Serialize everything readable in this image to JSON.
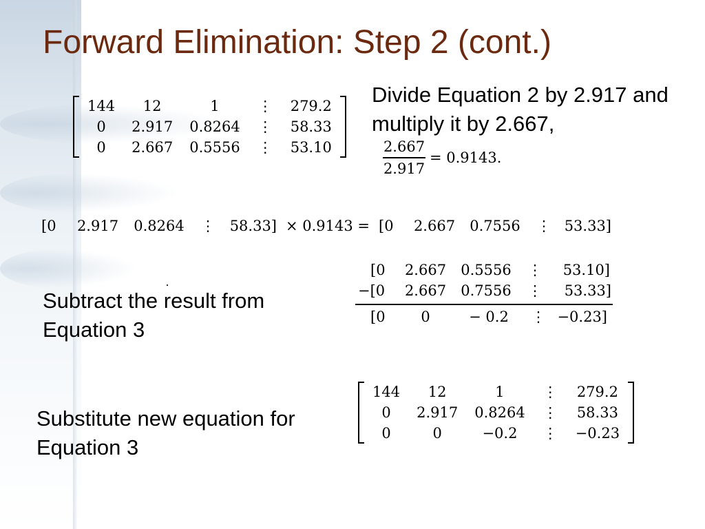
{
  "title": "Forward Elimination: Step 2 (cont.)",
  "matrix_top": [
    [
      "144",
      "12",
      "1",
      "⋮",
      "279.2"
    ],
    [
      "0",
      "2.917",
      "0.8264",
      "⋮",
      "58.33"
    ],
    [
      "0",
      "2.667",
      "0.5556",
      "⋮",
      "53.10"
    ]
  ],
  "instruction_divide": {
    "line1": "Divide Equation 2 by 2.917 and",
    "line2": "multiply it by 2.667,"
  },
  "fraction": {
    "numerator": "2.667",
    "denominator": "2.917",
    "result": "= 0.9143."
  },
  "multiply_row": {
    "left": [
      "[0",
      "2.917",
      "0.8264",
      "⋮",
      "58.33]"
    ],
    "op": "× 0.9143 =",
    "right": [
      "[0",
      "2.667",
      "0.7556",
      "⋮",
      "53.33]"
    ]
  },
  "subtraction": {
    "row1": [
      "[0",
      "2.667",
      "0.5556",
      "⋮",
      "53.10]"
    ],
    "row2": [
      "−[0",
      "2.667",
      "0.7556",
      "⋮",
      "53.33]"
    ],
    "row3": [
      "[0",
      "0",
      "− 0.2",
      "⋮",
      "−0.23]"
    ]
  },
  "instruction_subtract": {
    "line1": "Subtract the result from",
    "line2": "Equation 3"
  },
  "instruction_substitute": {
    "line1": "Substitute new equation for",
    "line2": "Equation 3"
  },
  "matrix_bottom": [
    [
      "144",
      "12",
      "1",
      "⋮",
      "279.2"
    ],
    [
      "0",
      "2.917",
      "0.8264",
      "⋮",
      "58.33"
    ],
    [
      "0",
      "0",
      "−0.2",
      "⋮",
      "−0.23"
    ]
  ]
}
